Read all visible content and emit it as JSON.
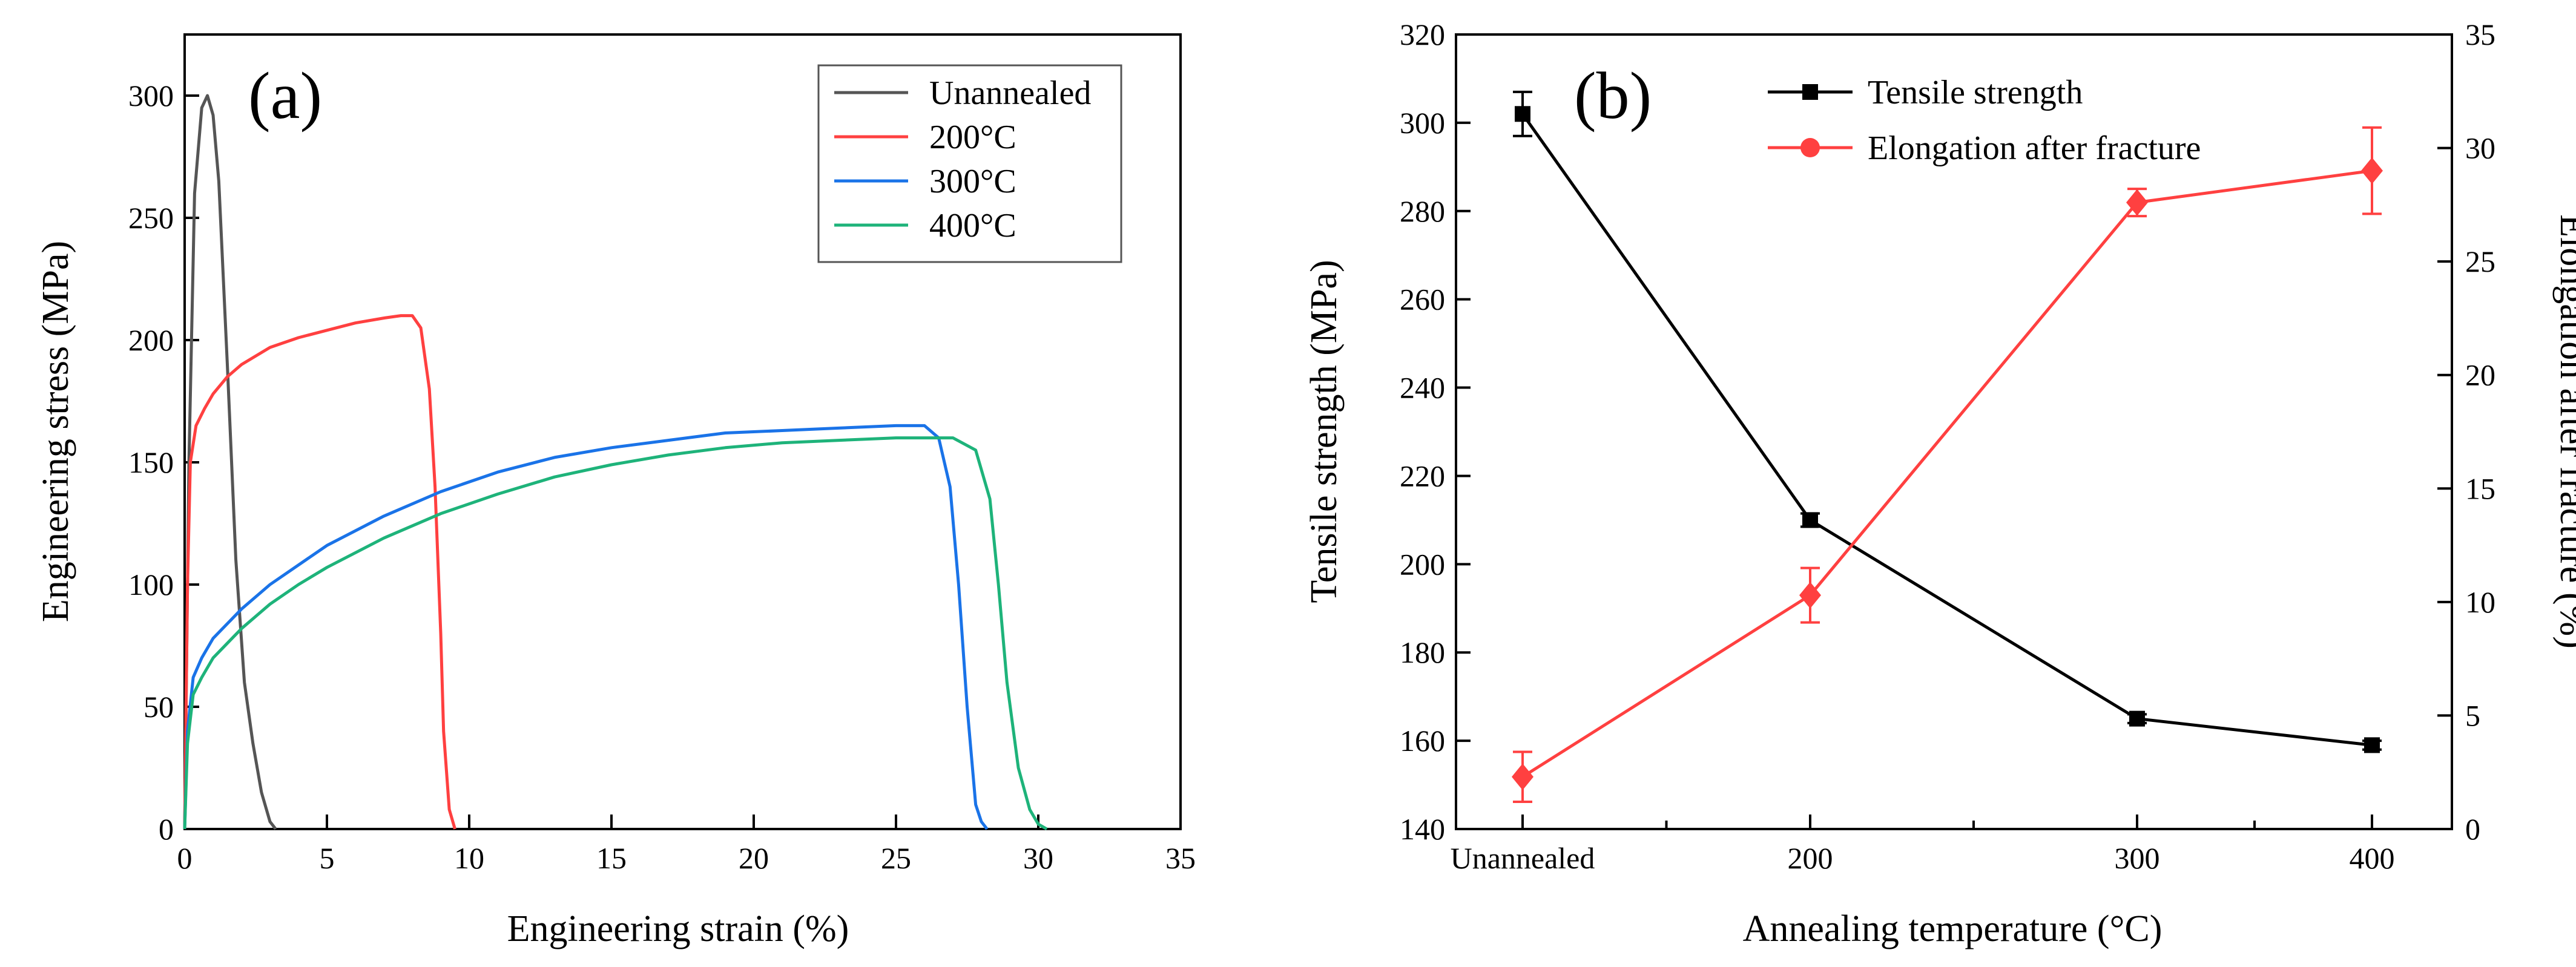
{
  "chart_data": [
    {
      "type": "line",
      "panel_label": "(a)",
      "xlabel": "Engineering strain (%)",
      "ylabel": "Engineering stress (MPa)",
      "xlim": [
        0,
        35
      ],
      "ylim": [
        0,
        325
      ],
      "xticks": [
        0,
        5,
        10,
        15,
        20,
        25,
        30,
        35
      ],
      "yticks": [
        0,
        50,
        100,
        150,
        200,
        250,
        300
      ],
      "legend_position": "top-right",
      "series": [
        {
          "name": "Unannealed",
          "color": "#555555",
          "x": [
            0,
            0.15,
            0.35,
            0.6,
            0.8,
            1.0,
            1.2,
            1.5,
            1.8,
            2.1,
            2.4,
            2.7,
            3.0,
            3.2
          ],
          "y": [
            0,
            150,
            260,
            295,
            300,
            292,
            265,
            190,
            110,
            60,
            35,
            15,
            3,
            0
          ]
        },
        {
          "name": "200°C",
          "color": "#ff4040",
          "x": [
            0,
            0.1,
            0.2,
            0.4,
            0.7,
            1.0,
            1.5,
            2.0,
            3.0,
            4.0,
            5.0,
            6.0,
            7.0,
            7.6,
            8.0,
            8.3,
            8.6,
            8.8,
            9.0,
            9.1,
            9.3,
            9.5
          ],
          "y": [
            0,
            100,
            150,
            165,
            172,
            178,
            185,
            190,
            197,
            201,
            204,
            207,
            209,
            210,
            210,
            205,
            180,
            140,
            80,
            40,
            8,
            0
          ]
        },
        {
          "name": "300°C",
          "color": "#1a73e8",
          "x": [
            0,
            0.1,
            0.3,
            0.6,
            1.0,
            2.0,
            3.0,
            4.0,
            5.0,
            7.0,
            9.0,
            11.0,
            13.0,
            15.0,
            17.0,
            19.0,
            21.0,
            23.0,
            25.0,
            26.0,
            26.5,
            26.9,
            27.2,
            27.5,
            27.8,
            28.0,
            28.2
          ],
          "y": [
            0,
            40,
            62,
            70,
            78,
            90,
            100,
            108,
            116,
            128,
            138,
            146,
            152,
            156,
            159,
            162,
            163,
            164,
            165,
            165,
            160,
            140,
            100,
            50,
            10,
            3,
            0
          ]
        },
        {
          "name": "400°C",
          "color": "#1eb37a",
          "x": [
            0,
            0.1,
            0.3,
            0.6,
            1.0,
            2.0,
            3.0,
            4.0,
            5.0,
            7.0,
            9.0,
            11.0,
            13.0,
            15.0,
            17.0,
            19.0,
            21.0,
            23.0,
            25.0,
            27.0,
            27.8,
            28.3,
            28.6,
            28.9,
            29.3,
            29.7,
            30.0,
            30.3
          ],
          "y": [
            0,
            35,
            55,
            62,
            70,
            82,
            92,
            100,
            107,
            119,
            129,
            137,
            144,
            149,
            153,
            156,
            158,
            159,
            160,
            160,
            155,
            135,
            100,
            60,
            25,
            8,
            2,
            0
          ]
        }
      ]
    },
    {
      "type": "line",
      "panel_label": "(b)",
      "xlabel": "Annealing temperature (°C)",
      "ylabel": "Tensile strength (MPa)",
      "ylabel_right": "Elongation after fracture (%)",
      "categories": [
        "Unannealed",
        "200",
        "300",
        "400"
      ],
      "ylim": [
        140,
        320
      ],
      "yticks": [
        140,
        160,
        180,
        200,
        220,
        240,
        260,
        280,
        300,
        320
      ],
      "ylim_right": [
        0,
        35
      ],
      "yticks_right": [
        0,
        5,
        10,
        15,
        20,
        25,
        30,
        35
      ],
      "legend_position": "top-center",
      "series": [
        {
          "name": "Tensile strength",
          "axis": "left",
          "color": "#000000",
          "marker": "square",
          "values": [
            302,
            210,
            165,
            159
          ],
          "errors": [
            5,
            1.5,
            1.0,
            1.0
          ]
        },
        {
          "name": "Elongation after fracture",
          "axis": "right",
          "color": "#ff4040",
          "marker": "diamond",
          "values": [
            2.3,
            10.3,
            27.6,
            29.0
          ],
          "errors": [
            1.1,
            1.2,
            0.6,
            1.9
          ]
        }
      ]
    }
  ]
}
